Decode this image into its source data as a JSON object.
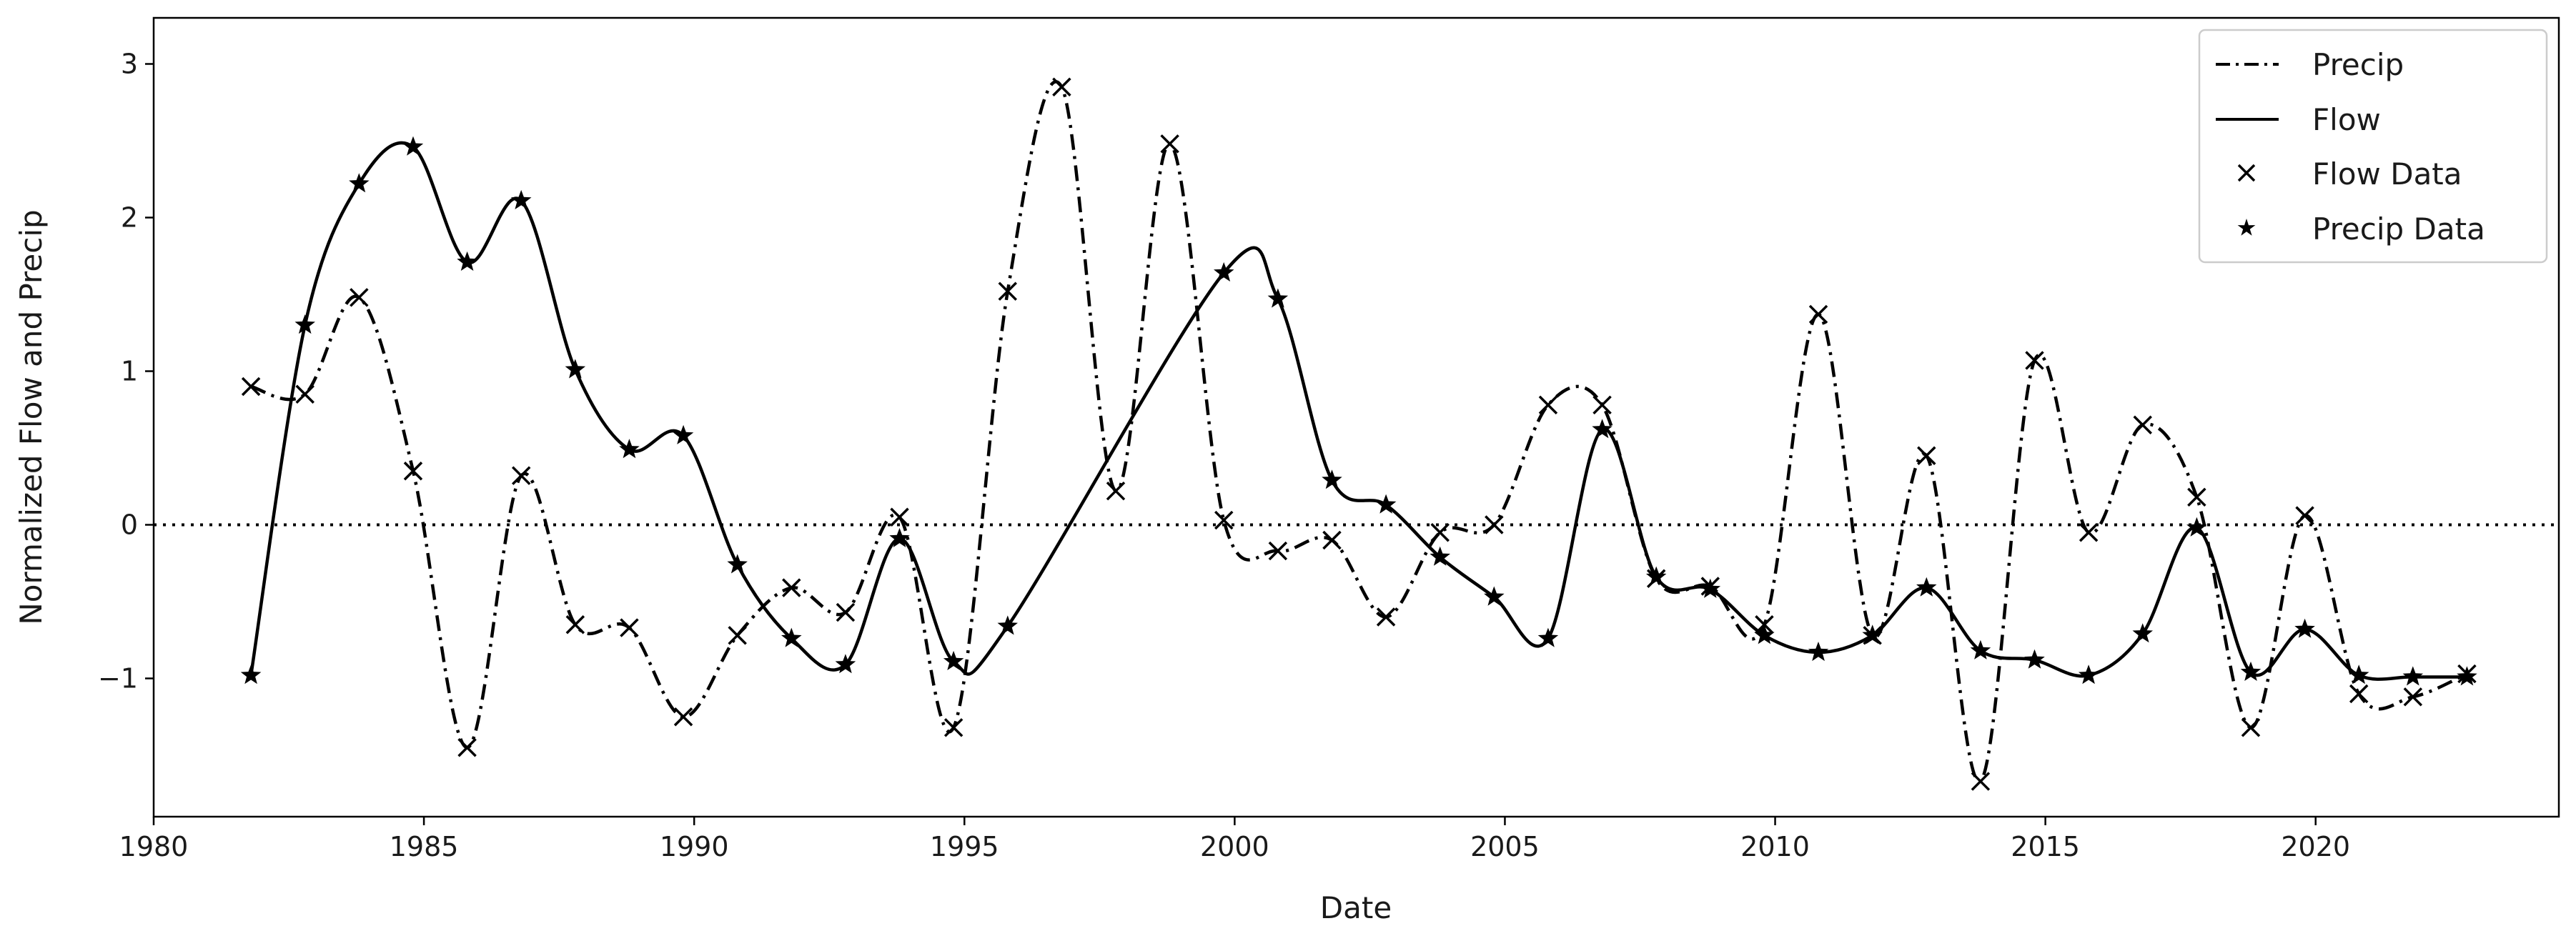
{
  "chart_data": {
    "type": "line",
    "xlabel": "Date",
    "ylabel": "Normalized Flow and Precip",
    "xlim": [
      1980,
      2024.5
    ],
    "ylim": [
      -1.9,
      3.3
    ],
    "x_ticks": [
      1980,
      1985,
      1990,
      1995,
      2000,
      2005,
      2010,
      2015,
      2020
    ],
    "x_tick_labels": [
      "1980",
      "1985",
      "1990",
      "1995",
      "2000",
      "2005",
      "2010",
      "2015",
      "2020"
    ],
    "y_ticks": [
      -1,
      0,
      1,
      2,
      3
    ],
    "y_tick_labels": [
      "−1",
      "0",
      "1",
      "2",
      "3"
    ],
    "reference_line": {
      "y": 0,
      "style": "dotted"
    },
    "legend_position": "top-right",
    "grid": false,
    "series": [
      {
        "name": "Precip",
        "style": "dash-dot",
        "color": "#000000",
        "x": [
          1981.8,
          1982.8,
          1983.8,
          1984.8,
          1985.8,
          1986.8,
          1987.8,
          1988.8,
          1989.8,
          1990.8,
          1991.8,
          1992.8,
          1993.8,
          1994.8,
          1995.8,
          1996.8,
          1997.8,
          1998.8,
          1999.8,
          2000.8,
          2001.8,
          2002.8,
          2003.8,
          2004.8,
          2005.8,
          2006.8,
          2007.8,
          2008.8,
          2009.8,
          2010.8,
          2011.8,
          2012.8,
          2013.8,
          2014.8,
          2015.8,
          2016.8,
          2017.8,
          2018.8,
          2019.8,
          2020.8,
          2021.8,
          2022.8
        ],
        "values": [
          0.9,
          0.85,
          1.48,
          0.35,
          -1.45,
          0.32,
          -0.65,
          -0.67,
          -1.25,
          -0.72,
          -0.41,
          -0.57,
          0.05,
          -1.32,
          1.52,
          2.85,
          0.22,
          2.48,
          0.03,
          -0.17,
          -0.1,
          -0.6,
          -0.05,
          0.0,
          0.78,
          0.78,
          -0.35,
          -0.4,
          -0.65,
          1.37,
          -0.72,
          0.45,
          -1.67,
          1.07,
          -0.05,
          0.65,
          0.18,
          -1.32,
          0.06,
          -1.1,
          -1.12,
          -0.97
        ]
      },
      {
        "name": "Flow",
        "style": "solid",
        "color": "#000000",
        "x": [
          1981.8,
          1982.8,
          1983.8,
          1984.8,
          1985.8,
          1986.8,
          1987.8,
          1988.8,
          1989.8,
          1990.8,
          1991.8,
          1992.8,
          1993.8,
          1994.8,
          1995.8,
          1999.8,
          2000.8,
          2001.8,
          2002.8,
          2003.8,
          2004.8,
          2005.8,
          2006.8,
          2007.8,
          2008.8,
          2009.8,
          2010.8,
          2011.8,
          2012.8,
          2013.8,
          2014.8,
          2015.8,
          2016.8,
          2017.8,
          2018.8,
          2019.8,
          2020.8,
          2021.8,
          2022.8
        ],
        "values": [
          -0.98,
          1.3,
          2.22,
          2.46,
          1.71,
          2.11,
          1.01,
          0.49,
          0.58,
          -0.26,
          -0.74,
          -0.91,
          -0.09,
          -0.89,
          -0.66,
          1.64,
          1.47,
          0.29,
          0.13,
          -0.21,
          -0.47,
          -0.74,
          0.62,
          -0.34,
          -0.42,
          -0.72,
          -0.83,
          -0.72,
          -0.41,
          -0.82,
          -0.88,
          -0.98,
          -0.71,
          -0.02,
          -0.96,
          -0.68,
          -0.98,
          -0.99,
          -0.99
        ]
      },
      {
        "name": "Flow Data",
        "style": "marker-x",
        "color": "#000000",
        "x": [
          1981.8,
          1982.8,
          1983.8,
          1984.8,
          1985.8,
          1986.8,
          1987.8,
          1988.8,
          1989.8,
          1990.8,
          1991.8,
          1992.8,
          1993.8,
          1994.8,
          1995.8,
          1996.8,
          1997.8,
          1998.8,
          1999.8,
          2000.8,
          2001.8,
          2002.8,
          2003.8,
          2004.8,
          2005.8,
          2006.8,
          2007.8,
          2008.8,
          2009.8,
          2010.8,
          2011.8,
          2012.8,
          2013.8,
          2014.8,
          2015.8,
          2016.8,
          2017.8,
          2018.8,
          2019.8,
          2020.8,
          2021.8,
          2022.8
        ],
        "values": [
          0.9,
          0.85,
          1.48,
          0.35,
          -1.45,
          0.32,
          -0.65,
          -0.67,
          -1.25,
          -0.72,
          -0.41,
          -0.57,
          0.05,
          -1.32,
          1.52,
          2.85,
          0.22,
          2.48,
          0.03,
          -0.17,
          -0.1,
          -0.6,
          -0.05,
          0.0,
          0.78,
          0.78,
          -0.35,
          -0.4,
          -0.65,
          1.37,
          -0.72,
          0.45,
          -1.67,
          1.07,
          -0.05,
          0.65,
          0.18,
          -1.32,
          0.06,
          -1.1,
          -1.12,
          -0.97
        ]
      },
      {
        "name": "Precip Data",
        "style": "marker-star",
        "color": "#000000",
        "x": [
          1981.8,
          1982.8,
          1983.8,
          1984.8,
          1985.8,
          1986.8,
          1987.8,
          1988.8,
          1989.8,
          1990.8,
          1991.8,
          1992.8,
          1993.8,
          1994.8,
          1995.8,
          1999.8,
          2000.8,
          2001.8,
          2002.8,
          2003.8,
          2004.8,
          2005.8,
          2006.8,
          2007.8,
          2008.8,
          2009.8,
          2010.8,
          2011.8,
          2012.8,
          2013.8,
          2014.8,
          2015.8,
          2016.8,
          2017.8,
          2018.8,
          2019.8,
          2020.8,
          2021.8,
          2022.8
        ],
        "values": [
          -0.98,
          1.3,
          2.22,
          2.46,
          1.71,
          2.11,
          1.01,
          0.49,
          0.58,
          -0.26,
          -0.74,
          -0.91,
          -0.09,
          -0.89,
          -0.66,
          1.64,
          1.47,
          0.29,
          0.13,
          -0.21,
          -0.47,
          -0.74,
          0.62,
          -0.34,
          -0.42,
          -0.72,
          -0.83,
          -0.72,
          -0.41,
          -0.82,
          -0.88,
          -0.98,
          -0.71,
          -0.02,
          -0.96,
          -0.68,
          -0.98,
          -0.99,
          -0.99
        ]
      }
    ],
    "legend": {
      "entries": [
        "Precip",
        "Flow",
        "Flow Data",
        "Precip Data"
      ]
    }
  }
}
